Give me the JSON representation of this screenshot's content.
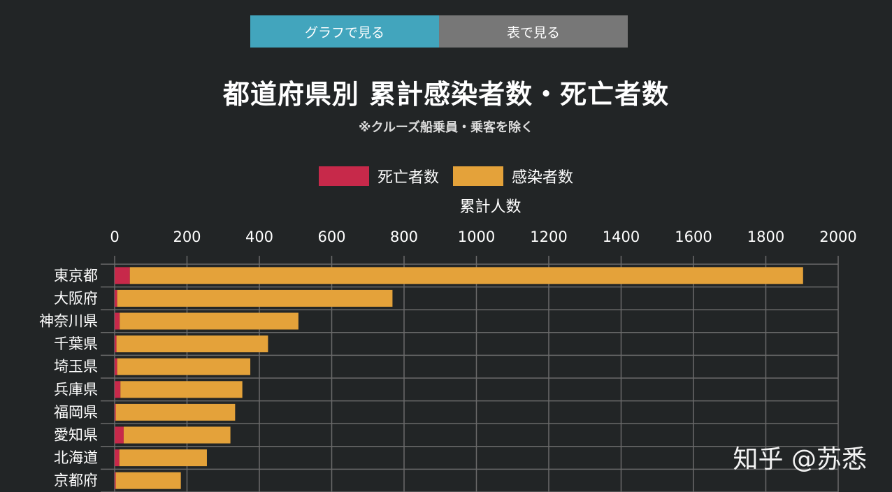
{
  "tabs": {
    "graph_label": "グラフで見る",
    "table_label": "表で見る"
  },
  "watermark": "知乎 @苏悉",
  "colors": {
    "death": "#c7294a",
    "infection": "#e4a23a",
    "grid": "#6a6a6a",
    "active_tab": "#42a5bd",
    "inactive_tab": "#777777"
  },
  "chart_data": {
    "type": "bar",
    "orientation": "horizontal",
    "stacked": true,
    "title": "都道府県別 累計感染者数・死亡者数",
    "subtitle": "※クルーズ船乗員・乗客を除く",
    "xlabel": "累計人数",
    "ylabel": "",
    "xlim": [
      0,
      2000
    ],
    "xticks": [
      0,
      200,
      400,
      600,
      800,
      1000,
      1200,
      1400,
      1600,
      1800,
      2000
    ],
    "legend_position": "top-center",
    "grid": true,
    "categories": [
      "東京都",
      "大阪府",
      "神奈川県",
      "千葉県",
      "埼玉県",
      "兵庫県",
      "福岡県",
      "愛知県",
      "北海道",
      "京都府"
    ],
    "series": [
      {
        "name": "死亡者数",
        "values": [
          42,
          7,
          14,
          5,
          7,
          16,
          3,
          25,
          13,
          3
        ]
      },
      {
        "name": "感染者数",
        "values": [
          1861,
          761,
          494,
          419,
          368,
          337,
          330,
          295,
          242,
          180
        ]
      }
    ]
  }
}
